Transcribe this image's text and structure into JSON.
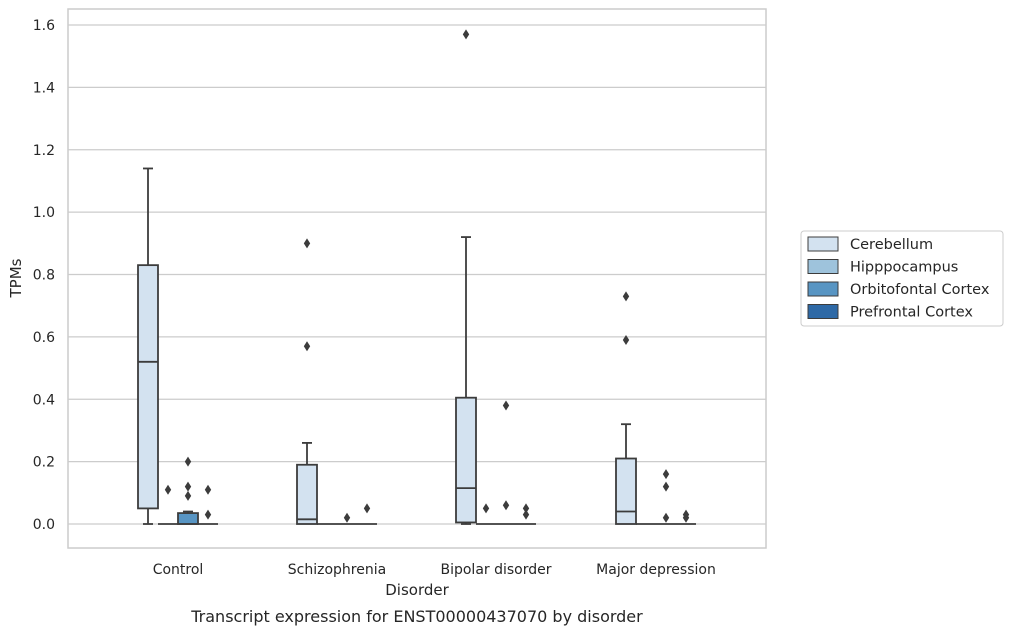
{
  "chart_data": {
    "type": "box",
    "caption": "Transcript expression for ENST00000437070 by disorder",
    "xlabel": "Disorder",
    "ylabel": "TPMs",
    "ylim": [
      -0.075,
      1.65
    ],
    "yticks": [
      "0.0",
      "0.2",
      "0.4",
      "0.6",
      "0.8",
      "1.0",
      "1.2",
      "1.4",
      "1.6"
    ],
    "grid": true,
    "legend_position": "right",
    "categories": [
      "Control",
      "Schizophrenia",
      "Bipolar disorder",
      "Major depression"
    ],
    "series": [
      {
        "name": "Cerebellum",
        "color": "#d3e2f0",
        "boxes": [
          {
            "q1": 0.05,
            "median": 0.52,
            "q3": 0.83,
            "whisker_low": 0.0,
            "whisker_high": 1.14,
            "outliers": []
          },
          {
            "q1": 0.0,
            "median": 0.015,
            "q3": 0.19,
            "whisker_low": 0.0,
            "whisker_high": 0.26,
            "outliers": [
              0.57,
              0.9
            ]
          },
          {
            "q1": 0.005,
            "median": 0.115,
            "q3": 0.405,
            "whisker_low": 0.0,
            "whisker_high": 0.92,
            "outliers": [
              1.57
            ]
          },
          {
            "q1": 0.0,
            "median": 0.04,
            "q3": 0.21,
            "whisker_low": 0.0,
            "whisker_high": 0.32,
            "outliers": [
              0.59,
              0.73
            ]
          }
        ]
      },
      {
        "name": "Hipppocampus",
        "color": "#9ec3dc",
        "boxes": [
          {
            "q1": 0.0,
            "median": 0.0,
            "q3": 0.0,
            "whisker_low": 0.0,
            "whisker_high": 0.0,
            "outliers": [
              0.11
            ]
          },
          {
            "q1": 0.0,
            "median": 0.0,
            "q3": 0.0,
            "whisker_low": 0.0,
            "whisker_high": 0.0,
            "outliers": []
          },
          {
            "q1": 0.0,
            "median": 0.0,
            "q3": 0.0,
            "whisker_low": 0.0,
            "whisker_high": 0.0,
            "outliers": [
              0.05
            ]
          },
          {
            "q1": 0.0,
            "median": 0.0,
            "q3": 0.0,
            "whisker_low": 0.0,
            "whisker_high": 0.0,
            "outliers": []
          }
        ]
      },
      {
        "name": "Orbitofontal Cortex",
        "color": "#5895c3",
        "boxes": [
          {
            "q1": 0.0,
            "median": 0.0,
            "q3": 0.035,
            "whisker_low": 0.0,
            "whisker_high": 0.04,
            "outliers": [
              0.09,
              0.12,
              0.2
            ]
          },
          {
            "q1": 0.0,
            "median": 0.0,
            "q3": 0.0,
            "whisker_low": 0.0,
            "whisker_high": 0.0,
            "outliers": [
              0.02
            ]
          },
          {
            "q1": 0.0,
            "median": 0.0,
            "q3": 0.0,
            "whisker_low": 0.0,
            "whisker_high": 0.0,
            "outliers": [
              0.06,
              0.38
            ]
          },
          {
            "q1": 0.0,
            "median": 0.0,
            "q3": 0.0,
            "whisker_low": 0.0,
            "whisker_high": 0.0,
            "outliers": [
              0.02,
              0.12,
              0.16
            ]
          }
        ]
      },
      {
        "name": "Prefrontal Cortex",
        "color": "#2e69a6",
        "boxes": [
          {
            "q1": 0.0,
            "median": 0.0,
            "q3": 0.0,
            "whisker_low": 0.0,
            "whisker_high": 0.0,
            "outliers": [
              0.03,
              0.11
            ]
          },
          {
            "q1": 0.0,
            "median": 0.0,
            "q3": 0.0,
            "whisker_low": 0.0,
            "whisker_high": 0.0,
            "outliers": [
              0.05
            ]
          },
          {
            "q1": 0.0,
            "median": 0.0,
            "q3": 0.0,
            "whisker_low": 0.0,
            "whisker_high": 0.0,
            "outliers": [
              0.03,
              0.05
            ]
          },
          {
            "q1": 0.0,
            "median": 0.0,
            "q3": 0.0,
            "whisker_low": 0.0,
            "whisker_high": 0.0,
            "outliers": [
              0.02,
              0.03
            ]
          }
        ]
      }
    ]
  }
}
